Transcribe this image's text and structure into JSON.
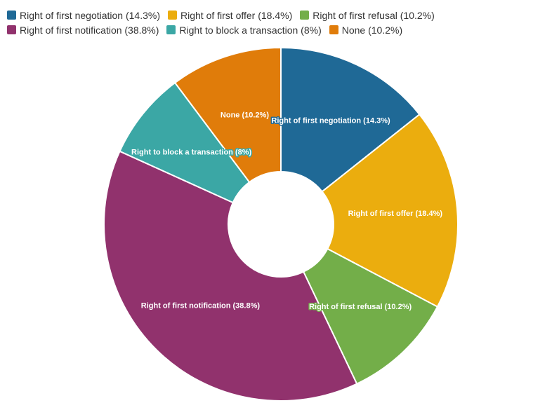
{
  "chart_data": {
    "type": "pie",
    "variant": "donut",
    "title": "",
    "legend_position": "top-left",
    "slices": [
      {
        "label": "Right of first negotiation (14.3%)",
        "value": 14.3,
        "color": "#1f6996"
      },
      {
        "label": "Right of first offer (18.4%)",
        "value": 18.4,
        "color": "#ebad0e"
      },
      {
        "label": "Right of first refusal (10.2%)",
        "value": 10.2,
        "color": "#73ae49"
      },
      {
        "label": "Right of first notification (38.8%)",
        "value": 38.8,
        "color": "#91326d"
      },
      {
        "label": "Right to block a transaction (8%)",
        "value": 8,
        "color": "#3ba7a5"
      },
      {
        "label": "None (10.2%)",
        "value": 10.2,
        "color": "#e07c0a"
      }
    ]
  }
}
